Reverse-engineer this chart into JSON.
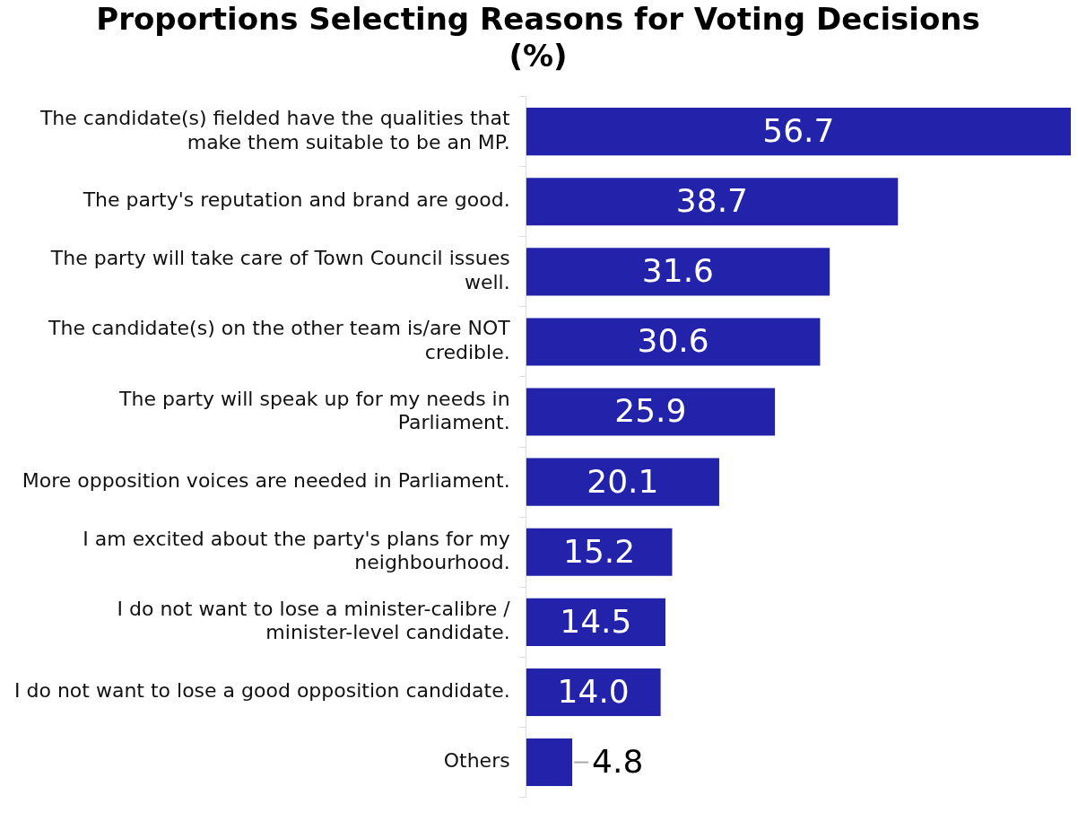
{
  "chart_data": {
    "type": "bar",
    "orientation": "horizontal",
    "title": "Proportions Selecting Reasons for Voting Decisions (%)",
    "categories": [
      "The candidate(s) fielded have the qualities that make them suitable to be an MP.",
      "The party's reputation and brand are good.",
      "The party will take care of Town Council issues well.",
      "The candidate(s) on the other team is/are NOT credible.",
      "The party will speak up for my needs in Parliament.",
      "More opposition voices are needed in Parliament.",
      "I am excited about the party's plans for my neighbourhood.",
      "I do not want to lose a minister-calibre / minister-level candidate.",
      "I do not want to lose a good opposition candidate.",
      "Others"
    ],
    "values": [
      56.7,
      38.7,
      31.6,
      30.6,
      25.9,
      20.1,
      15.2,
      14.5,
      14.0,
      4.8
    ],
    "value_labels": [
      "56.7",
      "38.7",
      "31.6",
      "30.6",
      "25.9",
      "20.1",
      "15.2",
      "14.5",
      "14.0",
      "4.8"
    ],
    "color": "#2222aa",
    "grid": false,
    "legend": false
  }
}
